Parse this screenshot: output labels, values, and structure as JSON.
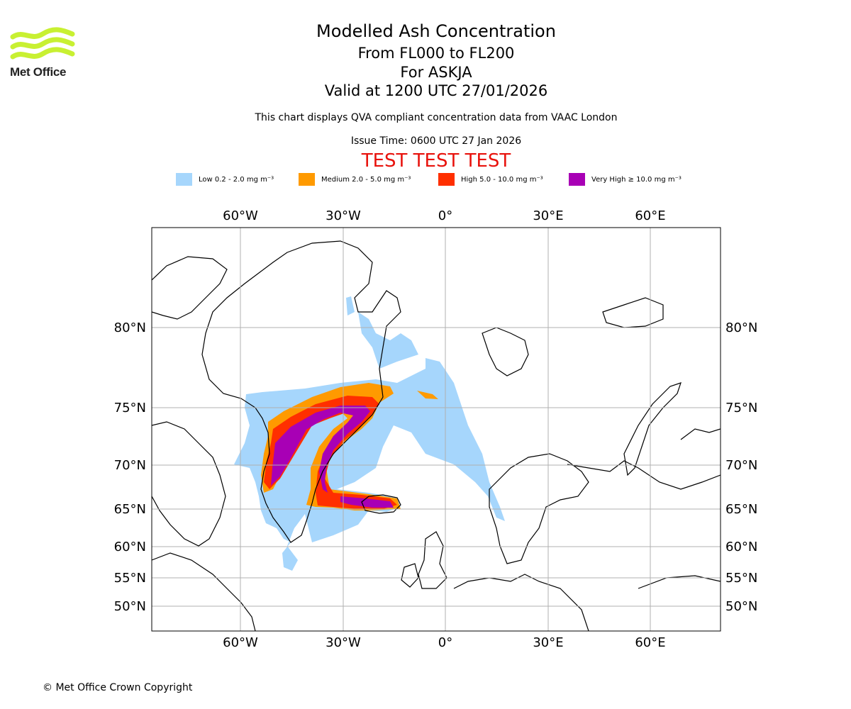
{
  "logo": {
    "name": "Met Office",
    "color": "#c8f032"
  },
  "header": {
    "title": "Modelled Ash Concentration",
    "levels": "From FL000 to FL200",
    "volcano": "For ASKJA",
    "valid": "Valid at 1200 UTC 27/01/2026",
    "compliance": "This chart displays QVA compliant concentration data from VAAC London",
    "issue_time": "Issue Time: 0600 UTC 27 Jan 2026",
    "test_banner": "TEST TEST TEST",
    "test_color": "#e8120c"
  },
  "legend": [
    {
      "label": "Low 0.2 - 2.0 mg m⁻³",
      "color": "#a6d6fc"
    },
    {
      "label": "Medium 2.0 - 5.0 mg m⁻³",
      "color": "#ff9a00"
    },
    {
      "label": "High 5.0 - 10.0 mg m⁻³",
      "color": "#ff2f00"
    },
    {
      "label": "Very High  ≥  10.0 mg m⁻³",
      "color": "#a800b5"
    }
  ],
  "map": {
    "lon_ticks": [
      "60°W",
      "30°W",
      "0°",
      "30°E",
      "60°E"
    ],
    "lat_ticks": [
      "80°N",
      "75°N",
      "70°N",
      "65°N",
      "60°N",
      "55°N",
      "50°N"
    ]
  },
  "footer": {
    "copyright": "© Met Office Crown Copyright"
  }
}
